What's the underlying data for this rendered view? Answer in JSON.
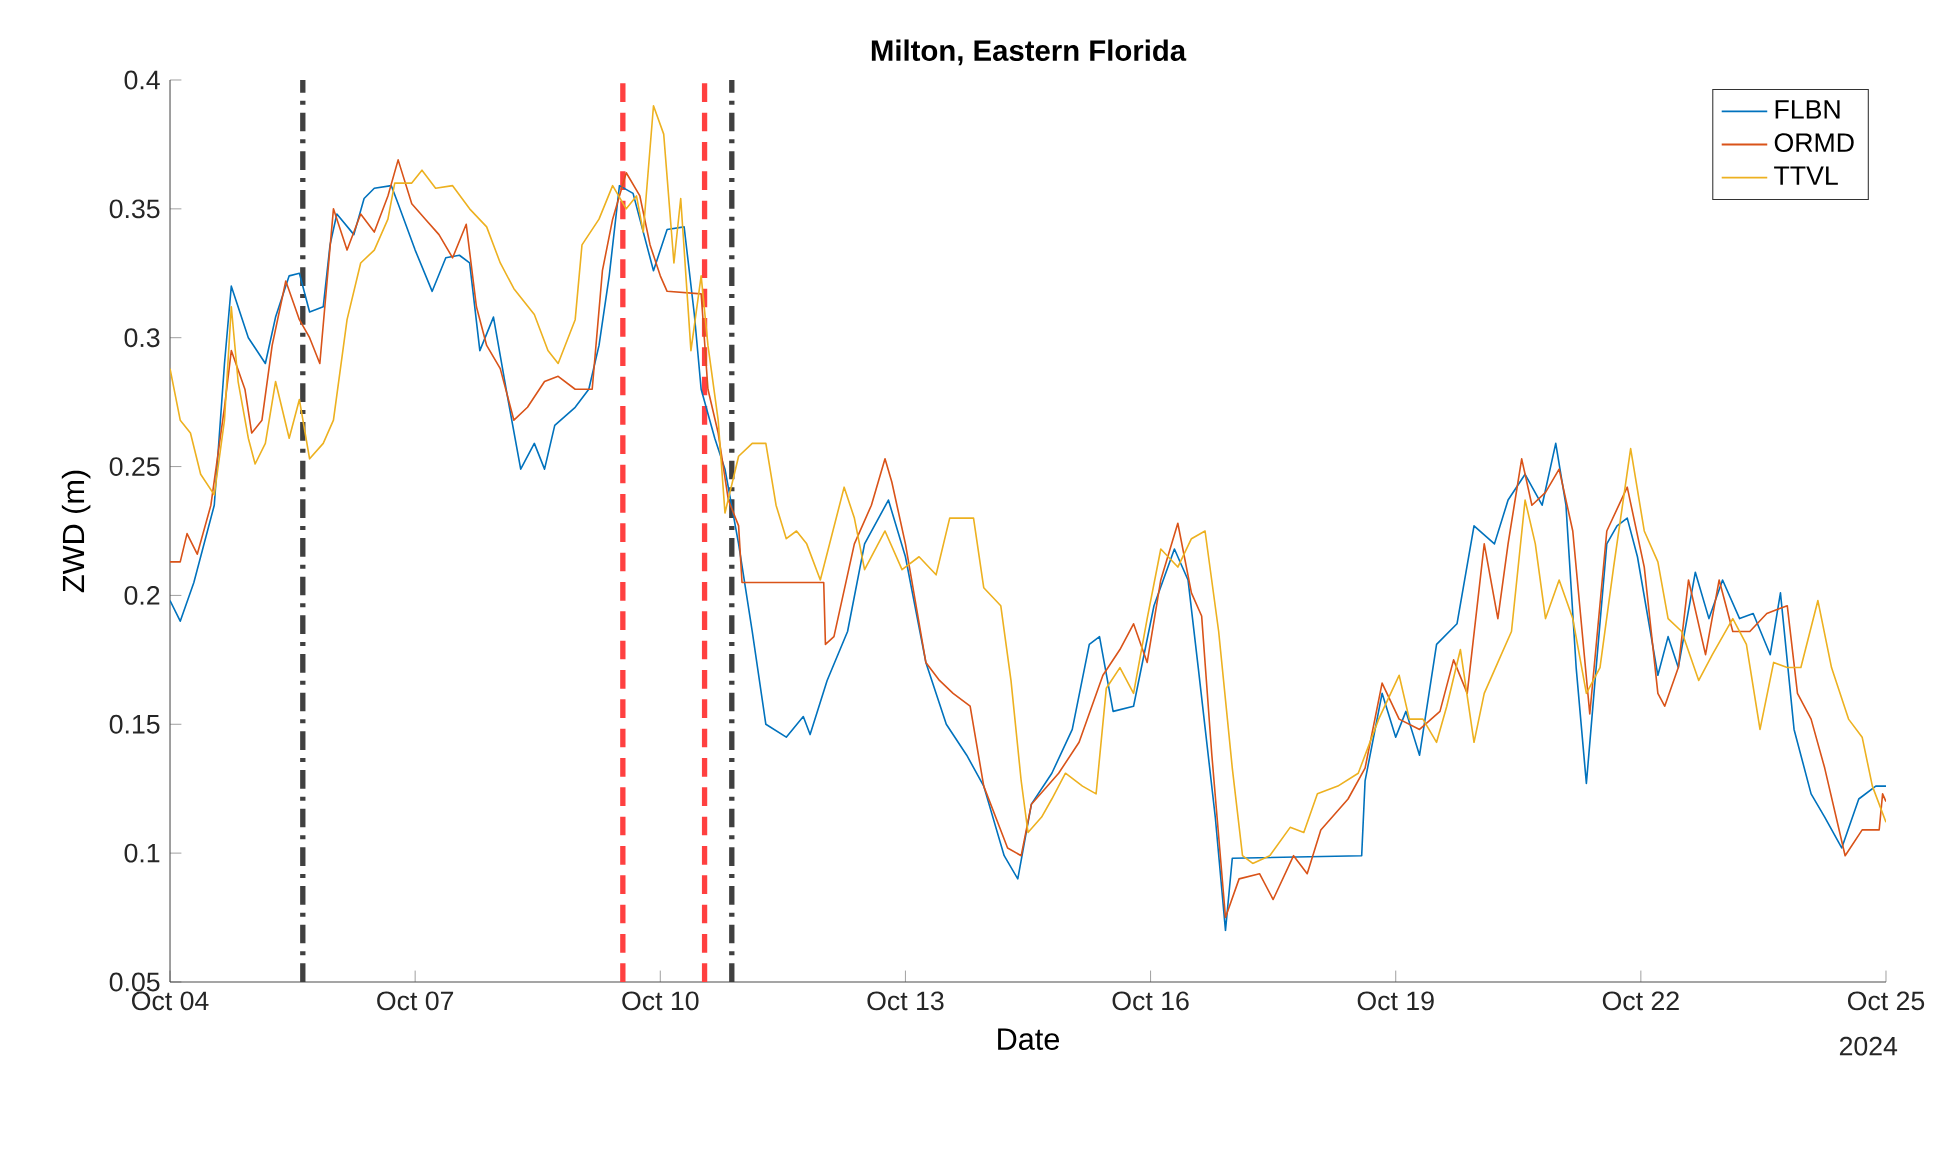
{
  "chart_data": {
    "type": "line",
    "title": "Milton, Eastern Florida",
    "xlabel": "Date",
    "ylabel": "ZWD (m)",
    "xlim": [
      "2024-10-04",
      "2024-10-25"
    ],
    "xticks": [
      {
        "value": "2024-10-04",
        "label": "Oct 04"
      },
      {
        "value": "2024-10-07",
        "label": "Oct 07"
      },
      {
        "value": "2024-10-10",
        "label": "Oct 10"
      },
      {
        "value": "2024-10-13",
        "label": "Oct 13"
      },
      {
        "value": "2024-10-16",
        "label": "Oct 16"
      },
      {
        "value": "2024-10-19",
        "label": "Oct 19"
      },
      {
        "value": "2024-10-22",
        "label": "Oct 22"
      },
      {
        "value": "2024-10-25",
        "label": "Oct 25"
      }
    ],
    "ylim": [
      0.05,
      0.4
    ],
    "yticks": [
      0.05,
      0.1,
      0.15,
      0.2,
      0.25,
      0.3,
      0.35,
      0.4
    ],
    "grid": false,
    "legend": "top right",
    "marker": "none",
    "line_style": "solid",
    "annotations": [
      "2024"
    ],
    "ref_lines": [
      {
        "axis": "x",
        "value": "2024-10-05T15:00",
        "color": "#404040",
        "line_style": "dashdot"
      },
      {
        "axis": "x",
        "value": "2024-10-09T13:00",
        "color": "#ff4040",
        "line_style": "dashed"
      },
      {
        "axis": "x",
        "value": "2024-10-10T13:00",
        "color": "#ff4040",
        "line_style": "dashed"
      },
      {
        "axis": "x",
        "value": "2024-10-10T21:00",
        "color": "#404040",
        "line_style": "dashdot"
      }
    ],
    "series": [
      {
        "name": "FLBN",
        "color": "#0072bd",
        "x": [
          "2024-10-04T00:00",
          "2024-10-04T03:00",
          "2024-10-04T07:00",
          "2024-10-04T13:00",
          "2024-10-04T16:00",
          "2024-10-04T18:00",
          "2024-10-04T23:00",
          "2024-10-05T04:00",
          "2024-10-05T07:00",
          "2024-10-05T11:00",
          "2024-10-05T14:00",
          "2024-10-05T17:00",
          "2024-10-05T21:00",
          "2024-10-05T23:00",
          "2024-10-06T01:00",
          "2024-10-06T06:00",
          "2024-10-06T09:00",
          "2024-10-06T12:00",
          "2024-10-06T17:00",
          "2024-10-06T19:00",
          "2024-10-07T00:00",
          "2024-10-07T05:00",
          "2024-10-07T09:00",
          "2024-10-07T13:00",
          "2024-10-07T16:00",
          "2024-10-07T19:00",
          "2024-10-07T23:00",
          "2024-10-08T03:00",
          "2024-10-08T07:00",
          "2024-10-08T11:00",
          "2024-10-08T14:00",
          "2024-10-08T17:00",
          "2024-10-08T23:00",
          "2024-10-09T03:00",
          "2024-10-09T06:00",
          "2024-10-09T09:00",
          "2024-10-09T12:00",
          "2024-10-09T16:00",
          "2024-10-09T22:00",
          "2024-10-10T02:00",
          "2024-10-10T07:00",
          "2024-10-10T10:00",
          "2024-10-10T12:00",
          "2024-10-10T16:00",
          "2024-10-10T19:00",
          "2024-10-10T23:00",
          "2024-10-11T03:00",
          "2024-10-11T07:00",
          "2024-10-11T13:00",
          "2024-10-11T18:00",
          "2024-10-11T20:00",
          "2024-10-12T01:00",
          "2024-10-12T07:00",
          "2024-10-12T12:00",
          "2024-10-12T19:00",
          "2024-10-13T00:00",
          "2024-10-13T06:00",
          "2024-10-13T12:00",
          "2024-10-13T18:00",
          "2024-10-13T23:00",
          "2024-10-14T05:00",
          "2024-10-14T09:00",
          "2024-10-14T13:00",
          "2024-10-14T19:00",
          "2024-10-15T01:00",
          "2024-10-15T06:00",
          "2024-10-15T09:00",
          "2024-10-15T13:00",
          "2024-10-15T19:00",
          "2024-10-16T01:00",
          "2024-10-16T07:00",
          "2024-10-16T11:00",
          "2024-10-16T14:00",
          "2024-10-16T19:00",
          "2024-10-16T22:00",
          "2024-10-17T00:00",
          "2024-10-18T14:00",
          "2024-10-18T15:00",
          "2024-10-18T20:00",
          "2024-10-19T00:00",
          "2024-10-19T03:00",
          "2024-10-19T07:00",
          "2024-10-19T12:00",
          "2024-10-19T18:00",
          "2024-10-19T23:00",
          "2024-10-20T05:00",
          "2024-10-20T09:00",
          "2024-10-20T14:00",
          "2024-10-20T19:00",
          "2024-10-20T23:00",
          "2024-10-21T02:00",
          "2024-10-21T05:00",
          "2024-10-21T08:00",
          "2024-10-21T11:00",
          "2024-10-21T14:00",
          "2024-10-21T17:00",
          "2024-10-21T20:00",
          "2024-10-21T23:00",
          "2024-10-22T05:00",
          "2024-10-22T08:00",
          "2024-10-22T11:00",
          "2024-10-22T16:00",
          "2024-10-22T20:00",
          "2024-10-23T00:00",
          "2024-10-23T05:00",
          "2024-10-23T09:00",
          "2024-10-23T14:00",
          "2024-10-23T17:00",
          "2024-10-23T21:00",
          "2024-10-24T02:00",
          "2024-10-24T06:00",
          "2024-10-24T11:00",
          "2024-10-24T16:00",
          "2024-10-24T21:00",
          "2024-10-25T00:00"
        ],
        "values": [
          0.198,
          0.19,
          0.205,
          0.235,
          0.29,
          0.32,
          0.3,
          0.29,
          0.308,
          0.324,
          0.325,
          0.31,
          0.312,
          0.336,
          0.348,
          0.34,
          0.354,
          0.358,
          0.359,
          0.352,
          0.334,
          0.318,
          0.331,
          0.332,
          0.329,
          0.295,
          0.308,
          0.278,
          0.249,
          0.259,
          0.249,
          0.266,
          0.273,
          0.28,
          0.297,
          0.324,
          0.359,
          0.356,
          0.326,
          0.342,
          0.343,
          0.309,
          0.28,
          0.261,
          0.249,
          0.22,
          0.186,
          0.15,
          0.145,
          0.153,
          0.146,
          0.167,
          0.186,
          0.22,
          0.237,
          0.215,
          0.174,
          0.15,
          0.138,
          0.126,
          0.099,
          0.09,
          0.119,
          0.131,
          0.148,
          0.181,
          0.184,
          0.155,
          0.157,
          0.196,
          0.218,
          0.206,
          0.172,
          0.114,
          0.07,
          0.098,
          0.099,
          0.128,
          0.162,
          0.145,
          0.155,
          0.138,
          0.181,
          0.189,
          0.227,
          0.22,
          0.237,
          0.247,
          0.235,
          0.259,
          0.235,
          0.172,
          0.127,
          0.174,
          0.22,
          0.227,
          0.23,
          0.215,
          0.169,
          0.184,
          0.172,
          0.209,
          0.191,
          0.206,
          0.191,
          0.193,
          0.177,
          0.201,
          0.148,
          0.123,
          0.114,
          0.102,
          0.121,
          0.126,
          0.126
        ]
      },
      {
        "name": "ORMD",
        "color": "#d95319",
        "x": [
          "2024-10-04T00:00",
          "2024-10-04T03:00",
          "2024-10-04T05:00",
          "2024-10-04T08:00",
          "2024-10-04T12:00",
          "2024-10-04T16:00",
          "2024-10-04T18:00",
          "2024-10-04T22:00",
          "2024-10-05T00:00",
          "2024-10-05T03:00",
          "2024-10-05T06:00",
          "2024-10-05T10:00",
          "2024-10-05T14:00",
          "2024-10-05T17:00",
          "2024-10-05T20:00",
          "2024-10-06T00:00",
          "2024-10-06T04:00",
          "2024-10-06T08:00",
          "2024-10-06T12:00",
          "2024-10-06T16:00",
          "2024-10-06T19:00",
          "2024-10-06T23:00",
          "2024-10-07T03:00",
          "2024-10-07T07:00",
          "2024-10-07T11:00",
          "2024-10-07T15:00",
          "2024-10-07T18:00",
          "2024-10-07T21:00",
          "2024-10-08T01:00",
          "2024-10-08T05:00",
          "2024-10-08T09:00",
          "2024-10-08T14:00",
          "2024-10-08T18:00",
          "2024-10-08T23:00",
          "2024-10-09T04:00",
          "2024-10-09T07:00",
          "2024-10-09T10:00",
          "2024-10-09T14:00",
          "2024-10-09T18:00",
          "2024-10-09T21:00",
          "2024-10-10T00:00",
          "2024-10-10T02:00",
          "2024-10-10T12:00",
          "2024-10-10T14:00",
          "2024-10-10T17:00",
          "2024-10-10T20:00",
          "2024-10-10T23:00",
          "2024-10-11T00:00",
          "2024-10-12T00:00",
          "2024-10-12T00:30",
          "2024-10-12T03:00",
          "2024-10-12T09:00",
          "2024-10-12T14:00",
          "2024-10-12T18:00",
          "2024-10-12T20:00",
          "2024-10-13T00:00",
          "2024-10-13T06:00",
          "2024-10-13T10:00",
          "2024-10-13T14:00",
          "2024-10-13T19:00",
          "2024-10-13T23:00",
          "2024-10-14T06:00",
          "2024-10-14T10:00",
          "2024-10-14T13:00",
          "2024-10-14T21:00",
          "2024-10-15T03:00",
          "2024-10-15T10:00",
          "2024-10-15T15:00",
          "2024-10-15T19:00",
          "2024-10-15T23:00",
          "2024-10-16T03:00",
          "2024-10-16T08:00",
          "2024-10-16T12:00",
          "2024-10-16T15:00",
          "2024-10-16T18:00",
          "2024-10-16T22:00",
          "2024-10-17T02:00",
          "2024-10-17T08:00",
          "2024-10-17T12:00",
          "2024-10-17T18:00",
          "2024-10-17T22:00",
          "2024-10-18T02:00",
          "2024-10-18T10:00",
          "2024-10-18T15:00",
          "2024-10-18T20:00",
          "2024-10-19T01:00",
          "2024-10-19T07:00",
          "2024-10-19T13:00",
          "2024-10-19T17:00",
          "2024-10-19T21:00",
          "2024-10-20T02:00",
          "2024-10-20T06:00",
          "2024-10-20T09:00",
          "2024-10-20T13:00",
          "2024-10-20T16:00",
          "2024-10-20T20:00",
          "2024-10-21T00:00",
          "2024-10-21T04:00",
          "2024-10-21T09:00",
          "2024-10-21T14:00",
          "2024-10-21T20:00",
          "2024-10-22T01:00",
          "2024-10-22T05:00",
          "2024-10-22T07:00",
          "2024-10-22T11:00",
          "2024-10-22T14:00",
          "2024-10-22T19:00",
          "2024-10-22T23:00",
          "2024-10-23T03:00",
          "2024-10-23T08:00",
          "2024-10-23T13:00",
          "2024-10-23T19:00",
          "2024-10-23T22:00",
          "2024-10-24T02:00",
          "2024-10-24T06:00",
          "2024-10-24T12:00",
          "2024-10-24T17:00",
          "2024-10-24T22:00",
          "2024-10-24T23:00",
          "2024-10-25T00:00"
        ],
        "values": [
          0.213,
          0.213,
          0.224,
          0.216,
          0.235,
          0.273,
          0.295,
          0.28,
          0.263,
          0.268,
          0.297,
          0.322,
          0.307,
          0.3,
          0.29,
          0.35,
          0.334,
          0.348,
          0.341,
          0.355,
          0.369,
          0.352,
          0.346,
          0.34,
          0.331,
          0.344,
          0.312,
          0.297,
          0.288,
          0.268,
          0.273,
          0.283,
          0.285,
          0.28,
          0.28,
          0.326,
          0.346,
          0.364,
          0.355,
          0.336,
          0.324,
          0.318,
          0.317,
          0.28,
          0.263,
          0.237,
          0.227,
          0.205,
          0.205,
          0.181,
          0.184,
          0.22,
          0.235,
          0.253,
          0.244,
          0.22,
          0.174,
          0.167,
          0.162,
          0.157,
          0.126,
          0.102,
          0.099,
          0.119,
          0.131,
          0.143,
          0.169,
          0.179,
          0.189,
          0.174,
          0.206,
          0.228,
          0.201,
          0.192,
          0.138,
          0.075,
          0.09,
          0.092,
          0.082,
          0.099,
          0.092,
          0.109,
          0.121,
          0.133,
          0.166,
          0.152,
          0.148,
          0.155,
          0.175,
          0.162,
          0.22,
          0.191,
          0.22,
          0.253,
          0.235,
          0.24,
          0.249,
          0.225,
          0.154,
          0.225,
          0.242,
          0.211,
          0.162,
          0.157,
          0.172,
          0.206,
          0.177,
          0.206,
          0.186,
          0.186,
          0.193,
          0.196,
          0.162,
          0.152,
          0.133,
          0.099,
          0.109,
          0.109,
          0.123,
          0.12
        ]
      },
      {
        "name": "TTVL",
        "color": "#edb120",
        "x": [
          "2024-10-04T00:00",
          "2024-10-04T03:00",
          "2024-10-04T06:00",
          "2024-10-04T09:00",
          "2024-10-04T13:00",
          "2024-10-04T16:00",
          "2024-10-04T18:00",
          "2024-10-04T20:00",
          "2024-10-04T23:00",
          "2024-10-05T01:00",
          "2024-10-05T04:00",
          "2024-10-05T07:00",
          "2024-10-05T11:00",
          "2024-10-05T14:00",
          "2024-10-05T17:00",
          "2024-10-05T21:00",
          "2024-10-06T00:00",
          "2024-10-06T04:00",
          "2024-10-06T08:00",
          "2024-10-06T12:00",
          "2024-10-06T16:00",
          "2024-10-06T18:00",
          "2024-10-06T23:00",
          "2024-10-07T02:00",
          "2024-10-07T06:00",
          "2024-10-07T11:00",
          "2024-10-07T16:00",
          "2024-10-07T21:00",
          "2024-10-08T01:00",
          "2024-10-08T05:00",
          "2024-10-08T11:00",
          "2024-10-08T15:00",
          "2024-10-08T18:00",
          "2024-10-08T23:00",
          "2024-10-09T01:00",
          "2024-10-09T06:00",
          "2024-10-09T10:00",
          "2024-10-09T14:00",
          "2024-10-09T17:00",
          "2024-10-09T19:00",
          "2024-10-09T22:00",
          "2024-10-10T01:00",
          "2024-10-10T04:00",
          "2024-10-10T06:00",
          "2024-10-10T09:00",
          "2024-10-10T12:00",
          "2024-10-10T14:00",
          "2024-10-10T17:00",
          "2024-10-10T19:00",
          "2024-10-10T23:00",
          "2024-10-11T03:00",
          "2024-10-11T07:00",
          "2024-10-11T10:00",
          "2024-10-11T13:00",
          "2024-10-11T16:00",
          "2024-10-11T19:00",
          "2024-10-11T23:00",
          "2024-10-12T06:00",
          "2024-10-12T09:00",
          "2024-10-12T12:00",
          "2024-10-12T18:00",
          "2024-10-12T23:00",
          "2024-10-13T04:00",
          "2024-10-13T09:00",
          "2024-10-13T13:00",
          "2024-10-13T20:00",
          "2024-10-13T23:00",
          "2024-10-14T04:00",
          "2024-10-14T07:00",
          "2024-10-14T10:00",
          "2024-10-14T12:00",
          "2024-10-14T16:00",
          "2024-10-14T19:00",
          "2024-10-14T23:00",
          "2024-10-15T04:00",
          "2024-10-15T08:00",
          "2024-10-15T11:00",
          "2024-10-15T15:00",
          "2024-10-15T19:00",
          "2024-10-15T23:00",
          "2024-10-16T03:00",
          "2024-10-16T08:00",
          "2024-10-16T12:00",
          "2024-10-16T16:00",
          "2024-10-16T20:00",
          "2024-10-17T00:00",
          "2024-10-17T03:00",
          "2024-10-17T06:00",
          "2024-10-17T11:00",
          "2024-10-17T17:00",
          "2024-10-17T21:00",
          "2024-10-18T01:00",
          "2024-10-18T07:00",
          "2024-10-18T13:00",
          "2024-10-18T19:00",
          "2024-10-19T01:00",
          "2024-10-19T04:00",
          "2024-10-19T08:00",
          "2024-10-19T12:00",
          "2024-10-19T15:00",
          "2024-10-19T19:00",
          "2024-10-19T23:00",
          "2024-10-20T02:00",
          "2024-10-20T06:00",
          "2024-10-20T10:00",
          "2024-10-20T14:00",
          "2024-10-20T17:00",
          "2024-10-20T20:00",
          "2024-10-21T00:00",
          "2024-10-21T04:00",
          "2024-10-21T08:00",
          "2024-10-21T12:00",
          "2024-10-21T16:00",
          "2024-10-21T21:00",
          "2024-10-22T01:00",
          "2024-10-22T05:00",
          "2024-10-22T08:00",
          "2024-10-22T12:00",
          "2024-10-22T17:00",
          "2024-10-22T21:00",
          "2024-10-23T03:00",
          "2024-10-23T07:00",
          "2024-10-23T11:00",
          "2024-10-23T15:00",
          "2024-10-23T19:00",
          "2024-10-23T23:00",
          "2024-10-24T04:00",
          "2024-10-24T08:00",
          "2024-10-24T13:00",
          "2024-10-24T17:00",
          "2024-10-24T20:00",
          "2024-10-25T00:00"
        ],
        "values": [
          0.288,
          0.268,
          0.263,
          0.247,
          0.239,
          0.268,
          0.312,
          0.283,
          0.261,
          0.251,
          0.259,
          0.283,
          0.261,
          0.276,
          0.253,
          0.259,
          0.268,
          0.307,
          0.329,
          0.334,
          0.346,
          0.36,
          0.36,
          0.365,
          0.358,
          0.359,
          0.35,
          0.343,
          0.329,
          0.319,
          0.309,
          0.295,
          0.29,
          0.307,
          0.336,
          0.346,
          0.359,
          0.35,
          0.355,
          0.341,
          0.39,
          0.379,
          0.329,
          0.354,
          0.295,
          0.324,
          0.297,
          0.268,
          0.232,
          0.254,
          0.259,
          0.259,
          0.235,
          0.222,
          0.225,
          0.22,
          0.206,
          0.242,
          0.23,
          0.21,
          0.225,
          0.21,
          0.215,
          0.208,
          0.23,
          0.23,
          0.203,
          0.196,
          0.167,
          0.128,
          0.108,
          0.114,
          0.121,
          0.131,
          0.126,
          0.123,
          0.164,
          0.172,
          0.162,
          0.191,
          0.218,
          0.211,
          0.222,
          0.225,
          0.186,
          0.133,
          0.099,
          0.096,
          0.099,
          0.11,
          0.108,
          0.123,
          0.126,
          0.131,
          0.152,
          0.169,
          0.152,
          0.152,
          0.143,
          0.157,
          0.179,
          0.143,
          0.162,
          0.174,
          0.186,
          0.237,
          0.22,
          0.191,
          0.206,
          0.191,
          0.162,
          0.172,
          0.211,
          0.257,
          0.225,
          0.213,
          0.191,
          0.186,
          0.167,
          0.177,
          0.191,
          0.181,
          0.148,
          0.174,
          0.172,
          0.172,
          0.198,
          0.172,
          0.152,
          0.145,
          0.126,
          0.112
        ]
      }
    ]
  }
}
